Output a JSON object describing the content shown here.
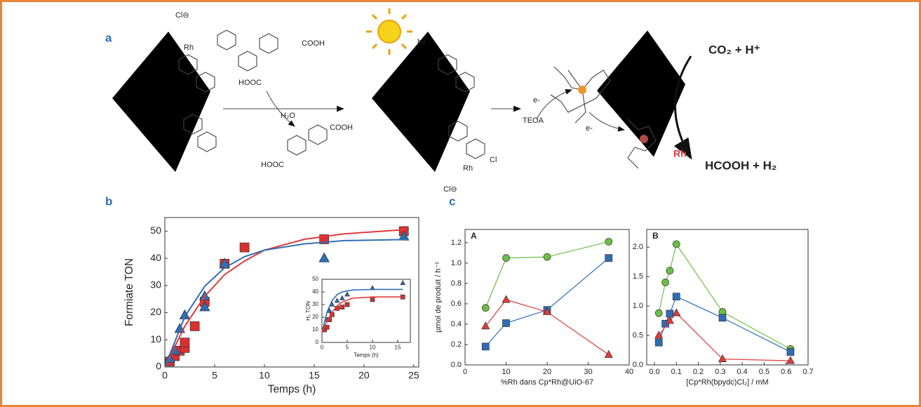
{
  "scheme": {
    "panels": [
      "a",
      "b",
      "c"
    ],
    "labels": [
      "Cl⊖",
      "Rh",
      "COOH",
      "HOOC",
      "H₂O",
      "COOH",
      "HOOC",
      "Cl",
      "Rh",
      "Cl⊖",
      "TEOA",
      "e-",
      "e-",
      "hν",
      "CO₂ + H⁺",
      "HCOOH + H₂",
      "Rh"
    ]
  },
  "chart_data": [
    {
      "type": "scatter",
      "xlabel": "Temps (h)",
      "ylabel": "Formiate TON",
      "xlim": [
        0,
        25.5
      ],
      "xticks": [
        0,
        5,
        10,
        15,
        20,
        25
      ],
      "ylim": [
        0,
        55
      ],
      "yticks": [
        0,
        10,
        20,
        30,
        40,
        50
      ],
      "series": [
        {
          "color": "#d93030",
          "marker": "square",
          "x": [
            0.5,
            1,
            1.5,
            2,
            2,
            3,
            4,
            6,
            8,
            16,
            24
          ],
          "values": [
            2,
            4,
            6,
            7,
            9,
            15,
            24,
            38,
            44,
            47,
            50
          ]
        },
        {
          "color": "#2f6db5",
          "marker": "triangle",
          "x": [
            0.5,
            1,
            1.5,
            2,
            4,
            4,
            6,
            16,
            24
          ],
          "values": [
            3,
            6,
            14,
            19,
            22,
            26,
            38,
            40,
            48
          ]
        },
        {
          "color": "#e03a3a",
          "line": true,
          "x": [
            0,
            2,
            4,
            6,
            8,
            10,
            14,
            18,
            24
          ],
          "values": [
            0,
            15,
            26,
            34,
            39,
            43,
            47,
            49,
            50.5
          ]
        },
        {
          "color": "#2f6db5",
          "line": true,
          "x": [
            0,
            2,
            4,
            6,
            8,
            10,
            14,
            18,
            24
          ],
          "values": [
            0,
            18.5,
            29.7,
            36.5,
            40.6,
            43,
            45.3,
            46.5,
            46.9
          ]
        }
      ]
    },
    {
      "type": "scatter",
      "xlabel": "Temps (h)",
      "ylabel": "H₂ TON",
      "xlim": [
        0,
        17.5
      ],
      "xticks": [
        0,
        5,
        10,
        15
      ],
      "ylim": [
        0,
        50
      ],
      "yticks": [
        0,
        10,
        20,
        30,
        40,
        50
      ],
      "series": [
        {
          "color": "#2f6db5",
          "marker": "triangle",
          "x": [
            0.5,
            1,
            1.5,
            2,
            3,
            4,
            5,
            10,
            16
          ],
          "values": [
            12,
            18,
            25,
            30,
            33,
            35,
            38,
            43,
            47
          ]
        },
        {
          "color": "#d93030",
          "marker": "square",
          "x": [
            0.5,
            1,
            1.5,
            2,
            3,
            4,
            5,
            10,
            16
          ],
          "values": [
            10,
            12,
            18,
            22,
            27,
            28,
            30,
            34,
            36
          ]
        },
        {
          "color": "#2f6db5",
          "line": true,
          "x": [
            0,
            1,
            2,
            3,
            4,
            6,
            10,
            16
          ],
          "values": [
            8,
            24,
            33,
            38,
            40,
            41.5,
            42,
            42
          ]
        },
        {
          "color": "#e03a3a",
          "line": true,
          "x": [
            0,
            1,
            2,
            3,
            4,
            6,
            10,
            16
          ],
          "values": [
            8,
            17,
            24,
            29,
            32,
            35,
            36,
            36
          ]
        }
      ]
    },
    {
      "type": "scatter",
      "panel": "A",
      "xlabel": "%Rh dans Cp*Rh@UiO-67",
      "ylabel": "µmol de produit / h⁻¹",
      "xlim": [
        0,
        40
      ],
      "xticks": [
        0,
        10,
        20,
        30,
        40
      ],
      "ylim": [
        0,
        1.33
      ],
      "yticks": [
        {
          "value": 0,
          "label": "0.0"
        },
        0.2,
        0.4,
        0.6,
        0.8,
        {
          "value": 1,
          "label": "1.0"
        },
        1.2
      ],
      "series": [
        {
          "color": "#6cbf45",
          "marker": "circle",
          "line": true,
          "x": [
            5,
            10,
            20,
            35
          ],
          "values": [
            0.56,
            1.05,
            1.06,
            1.21
          ]
        },
        {
          "color": "#2f6db5",
          "marker": "square",
          "line": true,
          "x": [
            5,
            10,
            20,
            35
          ],
          "values": [
            0.18,
            0.41,
            0.54,
            1.05
          ]
        },
        {
          "color": "#e03a3a",
          "marker": "triangle",
          "line": true,
          "x": [
            5,
            10,
            20,
            35
          ],
          "values": [
            0.38,
            0.64,
            0.52,
            0.1
          ]
        }
      ]
    },
    {
      "type": "scatter",
      "panel": "B",
      "xlabel": "[Cp*Rh(bpydc)Cl₂] / mM",
      "xlim": [
        -0.035,
        0.7
      ],
      "xticks": [
        {
          "value": 0,
          "label": "0.0"
        },
        0.1,
        0.2,
        0.3,
        0.4,
        0.5,
        0.6,
        0.7
      ],
      "ylim": [
        0,
        2.3
      ],
      "yticks": [
        {
          "value": 0,
          "label": "0.0"
        },
        0.5,
        {
          "value": 1,
          "label": "1.0"
        },
        1.5,
        {
          "value": 2,
          "label": "2.0"
        }
      ],
      "series": [
        {
          "color": "#6cbf45",
          "marker": "circle",
          "line": true,
          "x": [
            0.02,
            0.05,
            0.07,
            0.1,
            0.31,
            0.62
          ],
          "values": [
            0.88,
            1.4,
            1.6,
            2.05,
            0.9,
            0.27
          ]
        },
        {
          "color": "#2f6db5",
          "marker": "square",
          "line": true,
          "x": [
            0.02,
            0.05,
            0.07,
            0.1,
            0.31,
            0.62
          ],
          "values": [
            0.38,
            0.7,
            0.87,
            1.16,
            0.8,
            0.22
          ]
        },
        {
          "color": "#e03a3a",
          "marker": "triangle",
          "line": true,
          "x": [
            0.02,
            0.07,
            0.1,
            0.31,
            0.62
          ],
          "values": [
            0.5,
            0.75,
            0.88,
            0.1,
            0.07
          ]
        }
      ]
    }
  ]
}
